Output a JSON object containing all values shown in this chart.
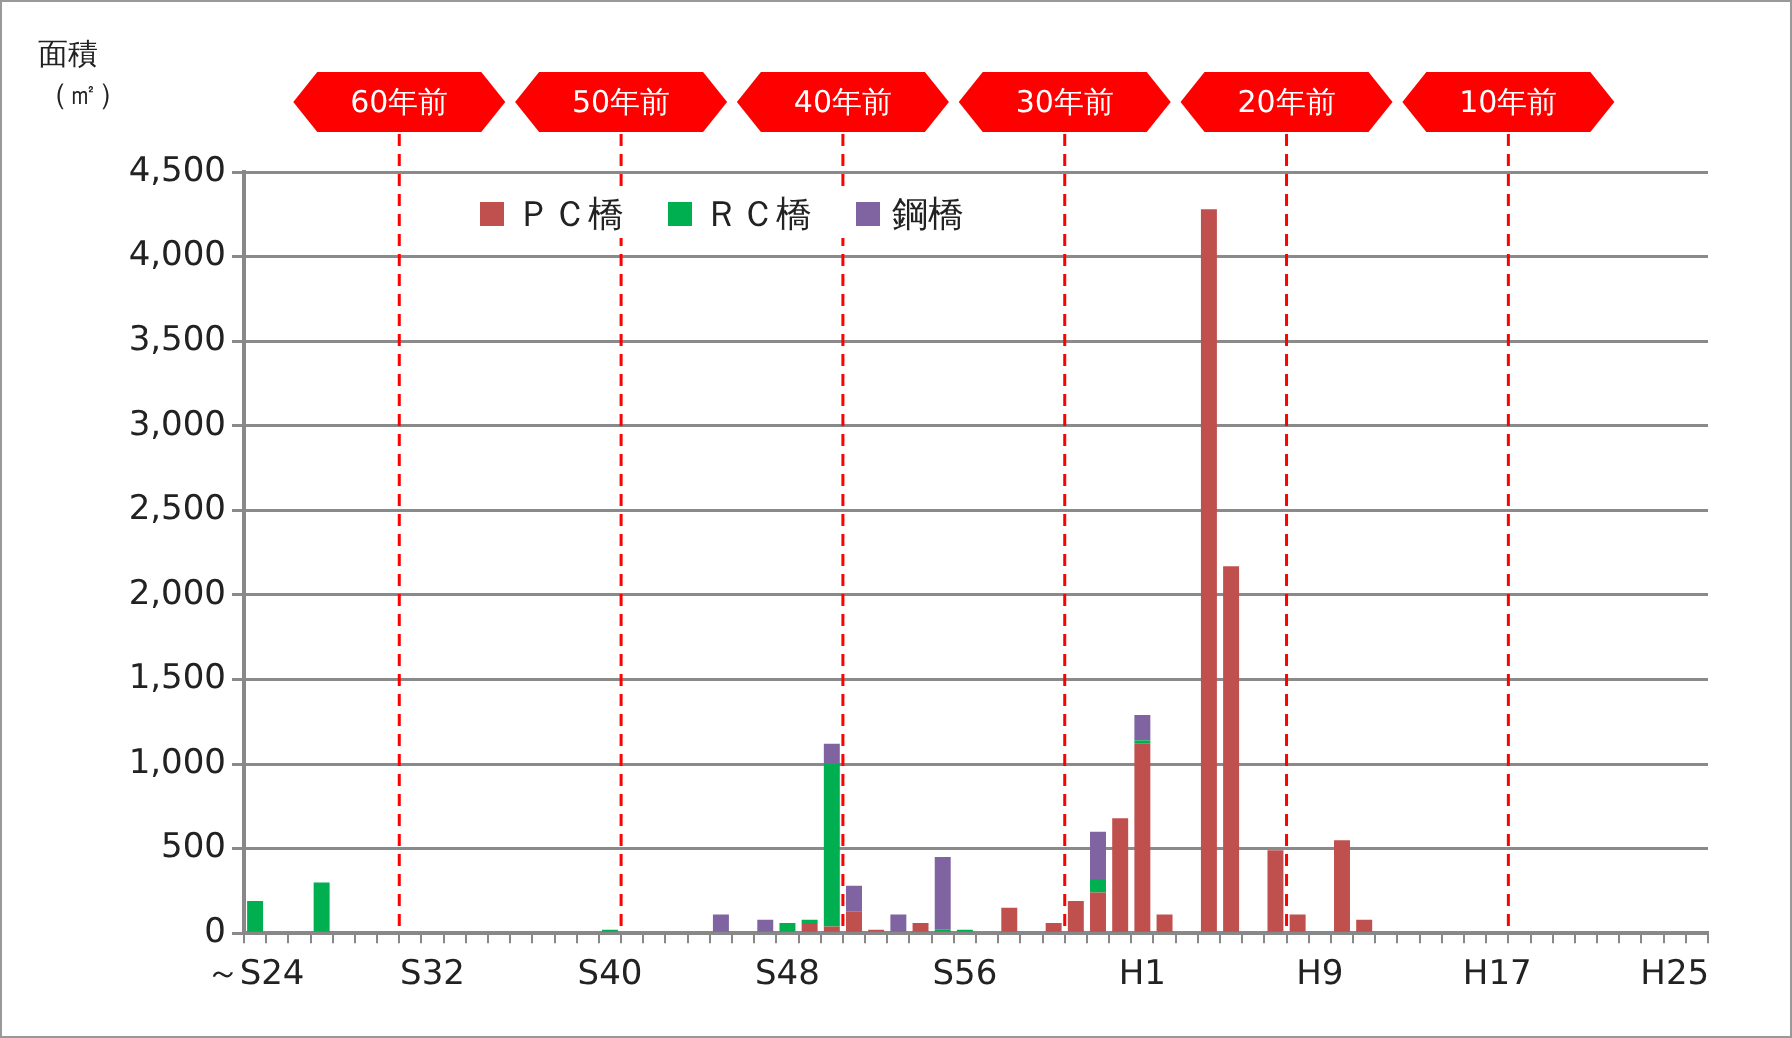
{
  "chart_data": {
    "type": "bar",
    "stacked": true,
    "ylabel": "面積（㎡）",
    "categories": [
      "～S24",
      null,
      null,
      null,
      null,
      null,
      null,
      null,
      "S32",
      null,
      null,
      null,
      null,
      null,
      null,
      null,
      "S40",
      null,
      null,
      null,
      null,
      null,
      null,
      null,
      "S48",
      null,
      null,
      null,
      null,
      null,
      null,
      null,
      "S56",
      null,
      null,
      null,
      null,
      null,
      null,
      null,
      "H1",
      null,
      null,
      null,
      null,
      null,
      null,
      null,
      "H9",
      null,
      null,
      null,
      null,
      null,
      null,
      null,
      "H17",
      null,
      null,
      null,
      null,
      null,
      null,
      null,
      "H25",
      null
    ],
    "series": [
      {
        "name": "ＰＣ橋",
        "color": "#c0504d",
        "values": [
          0,
          0,
          0,
          0,
          0,
          0,
          0,
          0,
          0,
          0,
          0,
          0,
          0,
          0,
          0,
          0,
          0,
          0,
          0,
          0,
          0,
          0,
          0,
          0,
          0,
          60,
          40,
          130,
          20,
          0,
          60,
          0,
          0,
          0,
          150,
          0,
          60,
          190,
          240,
          680,
          1120,
          110,
          0,
          4280,
          2170,
          0,
          490,
          110,
          0,
          550,
          80,
          0,
          0,
          0,
          0,
          0,
          0,
          0,
          0,
          0,
          0,
          0,
          0,
          0,
          0,
          0
        ]
      },
      {
        "name": "ＲＣ橋",
        "color": "#00b050",
        "values": [
          190,
          0,
          0,
          300,
          0,
          0,
          0,
          0,
          0,
          0,
          0,
          0,
          0,
          0,
          0,
          0,
          20,
          0,
          0,
          0,
          0,
          0,
          0,
          0,
          60,
          20,
          960,
          0,
          0,
          0,
          0,
          20,
          20,
          0,
          0,
          0,
          0,
          0,
          80,
          0,
          20,
          0,
          0,
          0,
          0,
          0,
          0,
          0,
          0,
          0,
          0,
          0,
          0,
          0,
          0,
          0,
          0,
          0,
          0,
          0,
          0,
          0,
          0,
          0,
          0,
          0
        ]
      },
      {
        "name": "鋼橋",
        "color": "#8064a2",
        "values": [
          0,
          0,
          0,
          0,
          0,
          0,
          0,
          0,
          0,
          0,
          0,
          0,
          0,
          0,
          0,
          0,
          0,
          0,
          0,
          0,
          0,
          110,
          0,
          80,
          0,
          0,
          120,
          150,
          0,
          110,
          0,
          430,
          0,
          0,
          0,
          0,
          0,
          0,
          280,
          0,
          150,
          0,
          0,
          0,
          0,
          0,
          0,
          0,
          0,
          0,
          0,
          0,
          0,
          0,
          0,
          0,
          0,
          0,
          0,
          0,
          0,
          0,
          0,
          0,
          0,
          0
        ]
      }
    ],
    "ylim": [
      0,
      4500
    ],
    "yticks": [
      0,
      500,
      {
        "value": 1000,
        "label": "1,000"
      },
      {
        "value": 1500,
        "label": "1,500"
      },
      {
        "value": 2000,
        "label": "2,000"
      },
      {
        "value": 2500,
        "label": "2,500"
      },
      {
        "value": 3000,
        "label": "3,000"
      },
      {
        "value": 3500,
        "label": "3,500"
      },
      {
        "value": 4000,
        "label": "4,000"
      },
      {
        "value": 4500,
        "label": "4,500"
      }
    ],
    "ref_lines": [
      {
        "axis": "x",
        "label": "60年前",
        "color": "#ff0000",
        "line_style": "dashed"
      },
      {
        "axis": "x",
        "label": "50年前",
        "color": "#ff0000",
        "line_style": "dashed"
      },
      {
        "axis": "x",
        "label": "40年前",
        "color": "#ff0000",
        "line_style": "dashed"
      },
      {
        "axis": "x",
        "label": "30年前",
        "color": "#ff0000",
        "line_style": "dashed"
      },
      {
        "axis": "x",
        "label": "20年前",
        "color": "#ff0000",
        "line_style": "dashed"
      },
      {
        "axis": "x",
        "label": "10年前",
        "color": "#ff0000",
        "line_style": "dashed"
      }
    ],
    "grid": "y",
    "legend": "top left"
  }
}
